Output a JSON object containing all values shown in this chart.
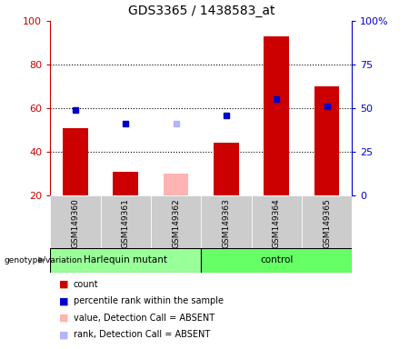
{
  "title": "GDS3365 / 1438583_at",
  "samples": [
    "GSM149360",
    "GSM149361",
    "GSM149362",
    "GSM149363",
    "GSM149364",
    "GSM149365"
  ],
  "group_labels": [
    "Harlequin mutant",
    "control"
  ],
  "red_bars": [
    51,
    31,
    null,
    44,
    93,
    70
  ],
  "red_bars_absent": [
    null,
    null,
    30,
    null,
    null,
    null
  ],
  "blue_markers_pct": [
    49,
    41,
    null,
    46,
    55,
    51
  ],
  "blue_markers_pct_absent": [
    null,
    null,
    41,
    null,
    null,
    null
  ],
  "ylim_left": [
    20,
    100
  ],
  "left_yticks": [
    20,
    40,
    60,
    80,
    100
  ],
  "right_yticks_pct": [
    0,
    25,
    50,
    75,
    100
  ],
  "right_yticklabels": [
    "0",
    "25",
    "50",
    "75",
    "100%"
  ],
  "left_axis_color": "#cc0000",
  "right_axis_color": "#0000cc",
  "bar_color_present": "#cc0000",
  "bar_color_absent": "#ffb3b3",
  "marker_color_present": "#0000cc",
  "marker_color_absent": "#b3b3ff",
  "sample_box_color": "#cccccc",
  "harlequin_color": "#99ff99",
  "control_color": "#66ff66",
  "legend_items": [
    {
      "color": "#cc0000",
      "label": "count"
    },
    {
      "color": "#0000cc",
      "label": "percentile rank within the sample"
    },
    {
      "color": "#ffb3b3",
      "label": "value, Detection Call = ABSENT"
    },
    {
      "color": "#b3b3ff",
      "label": "rank, Detection Call = ABSENT"
    }
  ]
}
